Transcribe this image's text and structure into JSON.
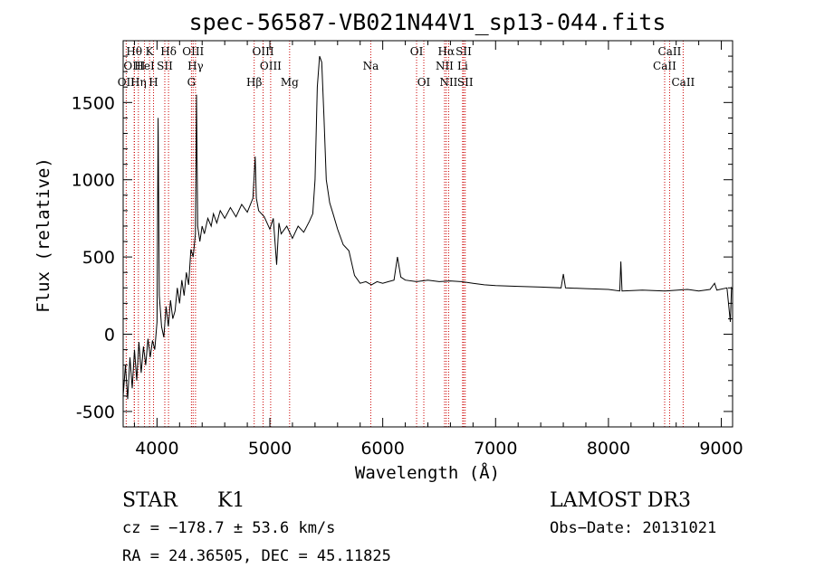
{
  "chart_data": {
    "type": "line",
    "title": "spec-56587-VB021N44V1_sp13-044.fits",
    "xlabel": "Wavelength (Å)",
    "ylabel": "Flux (relative)",
    "xlim": [
      3700,
      9100
    ],
    "ylim": [
      -600,
      1900
    ],
    "xticks": [
      4000,
      5000,
      6000,
      7000,
      8000,
      9000
    ],
    "yticks": [
      -500,
      0,
      500,
      1000,
      1500
    ],
    "series": [
      {
        "name": "flux",
        "points": [
          [
            3700,
            -400
          ],
          [
            3720,
            -200
          ],
          [
            3740,
            -420
          ],
          [
            3760,
            -150
          ],
          [
            3780,
            -350
          ],
          [
            3800,
            -100
          ],
          [
            3820,
            -300
          ],
          [
            3840,
            -50
          ],
          [
            3860,
            -250
          ],
          [
            3880,
            -80
          ],
          [
            3900,
            -200
          ],
          [
            3920,
            -30
          ],
          [
            3940,
            -150
          ],
          [
            3960,
            -40
          ],
          [
            3980,
            -100
          ],
          [
            4000,
            80
          ],
          [
            4010,
            1400
          ],
          [
            4020,
            250
          ],
          [
            4040,
            50
          ],
          [
            4060,
            -20
          ],
          [
            4080,
            180
          ],
          [
            4100,
            50
          ],
          [
            4120,
            220
          ],
          [
            4140,
            100
          ],
          [
            4160,
            150
          ],
          [
            4180,
            300
          ],
          [
            4200,
            200
          ],
          [
            4220,
            350
          ],
          [
            4240,
            250
          ],
          [
            4260,
            400
          ],
          [
            4280,
            320
          ],
          [
            4300,
            550
          ],
          [
            4320,
            500
          ],
          [
            4340,
            650
          ],
          [
            4350,
            1550
          ],
          [
            4360,
            700
          ],
          [
            4380,
            600
          ],
          [
            4400,
            700
          ],
          [
            4420,
            650
          ],
          [
            4450,
            750
          ],
          [
            4480,
            700
          ],
          [
            4500,
            780
          ],
          [
            4530,
            720
          ],
          [
            4560,
            800
          ],
          [
            4600,
            750
          ],
          [
            4650,
            820
          ],
          [
            4700,
            760
          ],
          [
            4750,
            840
          ],
          [
            4800,
            790
          ],
          [
            4850,
            880
          ],
          [
            4870,
            1150
          ],
          [
            4880,
            880
          ],
          [
            4900,
            800
          ],
          [
            4950,
            760
          ],
          [
            5000,
            680
          ],
          [
            5030,
            750
          ],
          [
            5060,
            450
          ],
          [
            5080,
            720
          ],
          [
            5100,
            650
          ],
          [
            5150,
            700
          ],
          [
            5200,
            620
          ],
          [
            5250,
            700
          ],
          [
            5300,
            660
          ],
          [
            5350,
            730
          ],
          [
            5380,
            780
          ],
          [
            5400,
            1000
          ],
          [
            5420,
            1600
          ],
          [
            5440,
            1800
          ],
          [
            5460,
            1760
          ],
          [
            5480,
            1400
          ],
          [
            5500,
            1000
          ],
          [
            5530,
            850
          ],
          [
            5560,
            780
          ],
          [
            5600,
            680
          ],
          [
            5650,
            580
          ],
          [
            5700,
            540
          ],
          [
            5750,
            380
          ],
          [
            5800,
            330
          ],
          [
            5850,
            340
          ],
          [
            5900,
            320
          ],
          [
            5950,
            340
          ],
          [
            6000,
            330
          ],
          [
            6050,
            340
          ],
          [
            6100,
            350
          ],
          [
            6130,
            500
          ],
          [
            6160,
            370
          ],
          [
            6200,
            350
          ],
          [
            6300,
            340
          ],
          [
            6400,
            350
          ],
          [
            6500,
            340
          ],
          [
            6600,
            345
          ],
          [
            6700,
            340
          ],
          [
            6800,
            330
          ],
          [
            6900,
            320
          ],
          [
            7000,
            315
          ],
          [
            7200,
            310
          ],
          [
            7400,
            305
          ],
          [
            7580,
            300
          ],
          [
            7600,
            390
          ],
          [
            7620,
            300
          ],
          [
            7800,
            295
          ],
          [
            8000,
            290
          ],
          [
            8100,
            280
          ],
          [
            8110,
            470
          ],
          [
            8120,
            280
          ],
          [
            8300,
            285
          ],
          [
            8500,
            280
          ],
          [
            8700,
            290
          ],
          [
            8800,
            280
          ],
          [
            8900,
            290
          ],
          [
            8940,
            330
          ],
          [
            8960,
            285
          ],
          [
            9050,
            300
          ],
          [
            9080,
            80
          ],
          [
            9090,
            300
          ],
          [
            9100,
            290
          ]
        ]
      }
    ],
    "lines": [
      {
        "name": "OII",
        "wavelength": 3727,
        "row": 3
      },
      {
        "name": "Hθ",
        "wavelength": 3798,
        "row": 1
      },
      {
        "name": "OIII",
        "wavelength": 3800,
        "row": 2
      },
      {
        "name": "Hη",
        "wavelength": 3835,
        "row": 3
      },
      {
        "name": "HeI",
        "wavelength": 3889,
        "row": 2
      },
      {
        "name": "K",
        "wavelength": 3934,
        "row": 1
      },
      {
        "name": "H",
        "wavelength": 3969,
        "row": 3
      },
      {
        "name": "SII",
        "wavelength": 4069,
        "row": 2
      },
      {
        "name": "Hδ",
        "wavelength": 4102,
        "row": 1
      },
      {
        "name": "G",
        "wavelength": 4305,
        "row": 3
      },
      {
        "name": "OIII",
        "wavelength": 4320,
        "row": 1
      },
      {
        "name": "Hγ",
        "wavelength": 4341,
        "row": 2
      },
      {
        "name": "Hβ",
        "wavelength": 4861,
        "row": 3
      },
      {
        "name": "OIII",
        "wavelength": 4940,
        "row": 1
      },
      {
        "name": "OIII",
        "wavelength": 5007,
        "row": 2
      },
      {
        "name": "Mg",
        "wavelength": 5175,
        "row": 3
      },
      {
        "name": "Na",
        "wavelength": 5894,
        "row": 2
      },
      {
        "name": "OI",
        "wavelength": 6300,
        "row": 1
      },
      {
        "name": "OI",
        "wavelength": 6364,
        "row": 3
      },
      {
        "name": "NII",
        "wavelength": 6548,
        "row": 2
      },
      {
        "name": "Hα",
        "wavelength": 6563,
        "row": 1
      },
      {
        "name": "NII",
        "wavelength": 6584,
        "row": 3
      },
      {
        "name": "SII",
        "wavelength": 6717,
        "row": 1
      },
      {
        "name": "Li",
        "wavelength": 6708,
        "row": 2
      },
      {
        "name": "SII",
        "wavelength": 6731,
        "row": 3
      },
      {
        "name": "CaII",
        "wavelength": 8498,
        "row": 2
      },
      {
        "name": "CaII",
        "wavelength": 8542,
        "row": 1
      },
      {
        "name": "CaII",
        "wavelength": 8662,
        "row": 3
      }
    ]
  },
  "info": {
    "class": "STAR",
    "subclass": "K1",
    "survey": "LAMOST DR3",
    "cz": "cz = −178.7 ± 53.6 km/s",
    "obs_date": "Obs−Date: 20131021",
    "coords": "RA =  24.36505, DEC =  45.11825"
  },
  "colors": {
    "line_marker": "#cc0000",
    "spectrum": "#000000",
    "axes": "#000000"
  }
}
